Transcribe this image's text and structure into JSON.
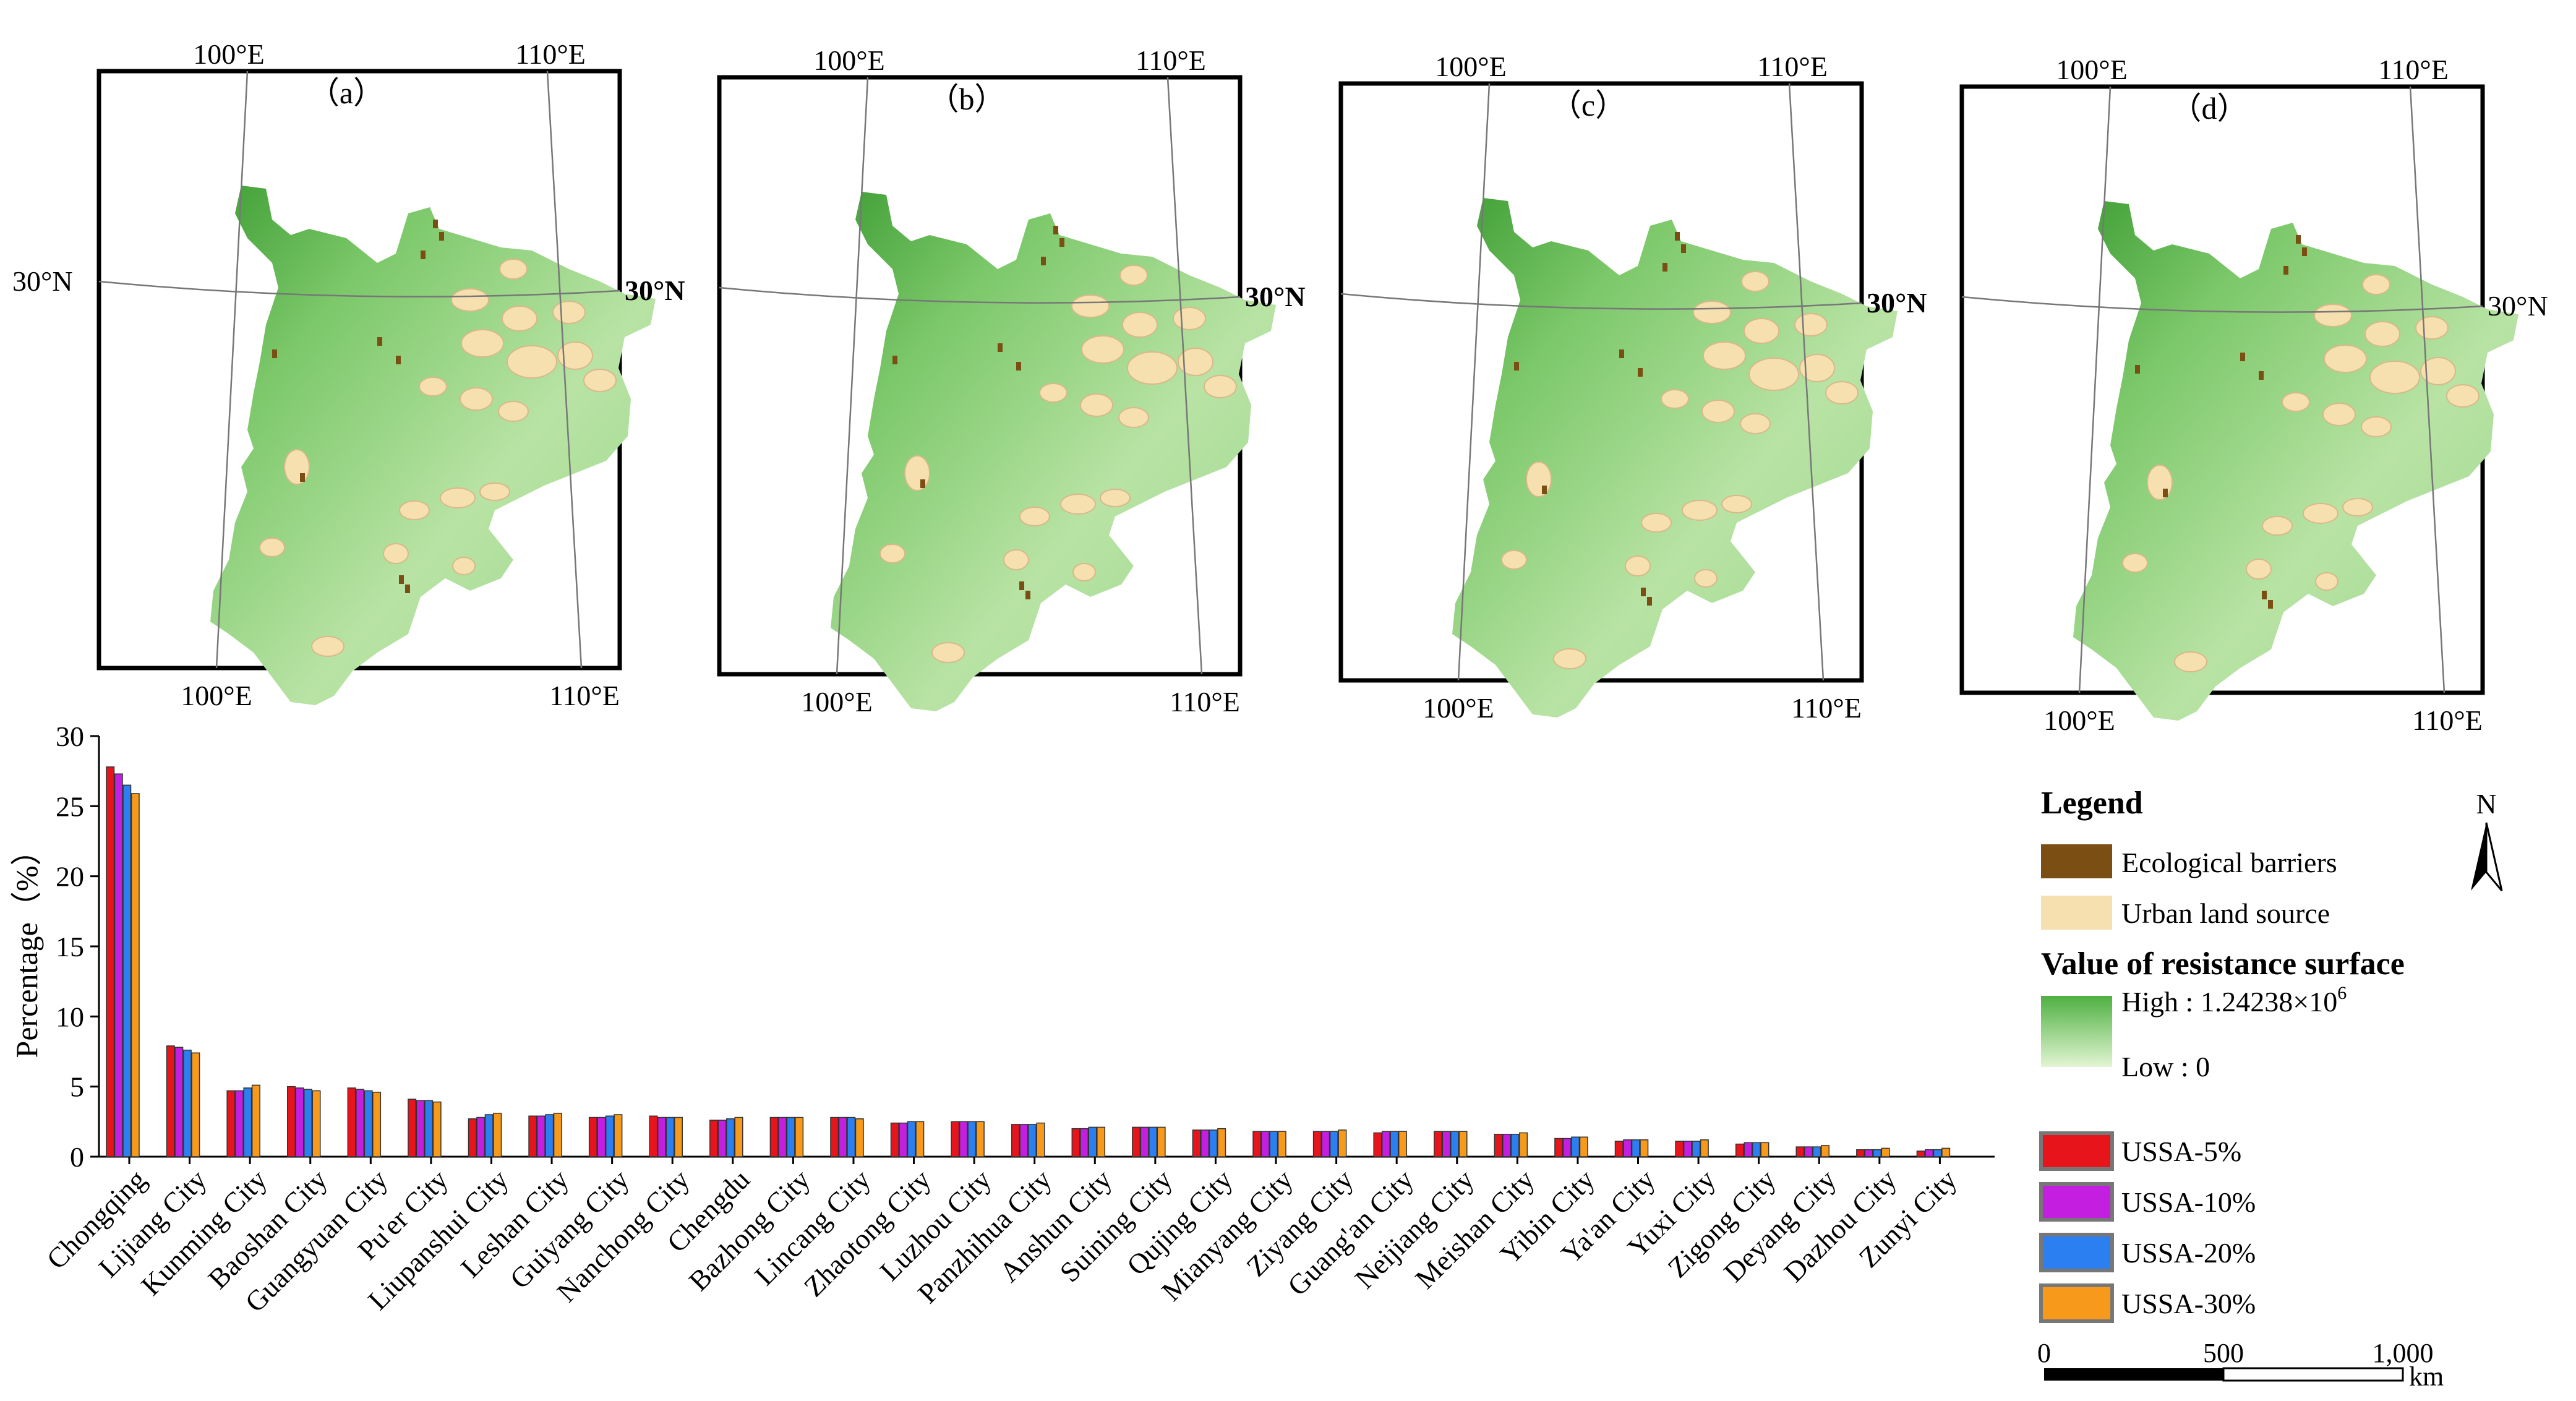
{
  "maps": [
    {
      "panel_label": "（a）",
      "top_lon_labels": [
        "100°E",
        "110°E"
      ],
      "bottom_lon_labels": [
        "100°E",
        "110°E"
      ],
      "lat_label_left": "30°N",
      "lat_label_right": "30°N"
    },
    {
      "panel_label": "（b）",
      "top_lon_labels": [
        "100°E",
        "110°E"
      ],
      "bottom_lon_labels": [
        "100°E",
        "110°E"
      ],
      "lat_label_right": "30°N"
    },
    {
      "panel_label": "（c）",
      "top_lon_labels": [
        "100°E",
        "110°E"
      ],
      "bottom_lon_labels": [
        "100°E",
        "110°E"
      ],
      "lat_label_right": "30°N"
    },
    {
      "panel_label": "（d）",
      "top_lon_labels": [
        "100°E",
        "110°E"
      ],
      "bottom_lon_labels": [
        "100°E",
        "110°E"
      ],
      "lat_label_right": "30°N"
    }
  ],
  "legend": {
    "title": "Legend",
    "barriers_label": "Ecological barriers",
    "urban_label": "Urban land source",
    "resistance_title": "Value of resistance surface",
    "high_label": "High : 1.24238×10",
    "high_exp": "6",
    "low_label": "Low : 0",
    "north": "N",
    "colors": {
      "barriers": "#7b4f13",
      "urban": "#f7e0b0",
      "high": "#4fb041",
      "low": "#dff3cf"
    }
  },
  "scalebar": {
    "ticks": [
      "0",
      "500",
      "1,000"
    ],
    "unit": "km"
  },
  "chart_data": {
    "type": "bar",
    "title": "",
    "xlabel": "",
    "ylabel": "Percentage（%）",
    "ylim": [
      0,
      30
    ],
    "yticks": [
      0,
      5,
      10,
      15,
      20,
      25,
      30
    ],
    "categories": [
      "Chongqing",
      "Lijiang City",
      "Kunming City",
      "Baoshan City",
      "Guangyuan City",
      "Pu'er City",
      "Liupanshui City",
      "Leshan City",
      "Guiyang City",
      "Nanchong City",
      "Chengdu",
      "Bazhong City",
      "Lincang City",
      "Zhaotong City",
      "Luzhou City",
      "Panzhihua City",
      "Anshun City",
      "Suining City",
      "Qujing City",
      "Mianyang City",
      "Ziyang City",
      "Guang'an City",
      "Neijiang City",
      "Meishan City",
      "Yibin City",
      "Ya'an City",
      "Yuxi City",
      "Zigong City",
      "Deyang City",
      "Dazhou City",
      "Zunyi City"
    ],
    "series": [
      {
        "name": "USSA-5%",
        "color": "#e8141c",
        "values": [
          27.8,
          7.9,
          4.7,
          5.0,
          4.9,
          4.1,
          2.7,
          2.9,
          2.8,
          2.9,
          2.6,
          2.8,
          2.8,
          2.4,
          2.5,
          2.3,
          2.0,
          2.1,
          1.9,
          1.8,
          1.8,
          1.7,
          1.8,
          1.6,
          1.3,
          1.1,
          1.1,
          0.9,
          0.7,
          0.5,
          0.4
        ]
      },
      {
        "name": "USSA-10%",
        "color": "#c41fe0",
        "values": [
          27.3,
          7.8,
          4.7,
          4.9,
          4.8,
          4.0,
          2.8,
          2.9,
          2.8,
          2.8,
          2.6,
          2.8,
          2.8,
          2.4,
          2.5,
          2.3,
          2.0,
          2.1,
          1.9,
          1.8,
          1.8,
          1.8,
          1.8,
          1.6,
          1.3,
          1.2,
          1.1,
          1.0,
          0.7,
          0.5,
          0.5
        ]
      },
      {
        "name": "USSA-20%",
        "color": "#2b7ff0",
        "values": [
          26.5,
          7.6,
          4.9,
          4.8,
          4.7,
          4.0,
          3.0,
          3.0,
          2.9,
          2.8,
          2.7,
          2.8,
          2.8,
          2.5,
          2.5,
          2.3,
          2.1,
          2.1,
          1.9,
          1.8,
          1.8,
          1.8,
          1.8,
          1.6,
          1.4,
          1.2,
          1.1,
          1.0,
          0.7,
          0.5,
          0.5
        ]
      },
      {
        "name": "USSA-30%",
        "color": "#f79a1c",
        "values": [
          25.9,
          7.4,
          5.1,
          4.7,
          4.6,
          3.9,
          3.1,
          3.1,
          3.0,
          2.8,
          2.8,
          2.8,
          2.7,
          2.5,
          2.5,
          2.4,
          2.1,
          2.1,
          2.0,
          1.8,
          1.9,
          1.8,
          1.8,
          1.7,
          1.4,
          1.2,
          1.2,
          1.0,
          0.8,
          0.6,
          0.6
        ]
      }
    ]
  }
}
